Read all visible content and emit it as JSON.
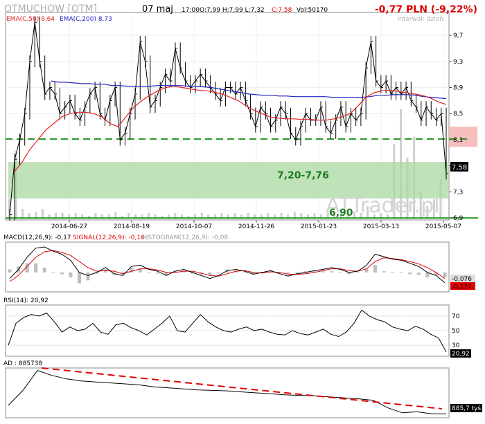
{
  "header": {
    "ticker": "OTMUCHOW [OTM]",
    "date": "07 maj",
    "time": "17:00",
    "ohlc": "O:7,99  H:7,99  L:7,32",
    "close_label": "C:7,58",
    "volume": "Vol:50170",
    "change": "-0,77 PLN (-9,22%)",
    "interval": "Interwał: dzień"
  },
  "watermark": "ATTrader.pl",
  "colors": {
    "ema50": "#e0201f",
    "ema200": "#2020c0",
    "price": "#000000",
    "support_zone": "#a9d8a0",
    "dashed_line": "#2a9a2a",
    "change": "#e00000",
    "macd_line": "#000000",
    "signal_line": "#e00000",
    "histogram": "#bdbdbd"
  },
  "chart_data": [
    {
      "type": "line",
      "panel": "price",
      "title": "OTMUCHOW [OTM]",
      "legend": [
        "EMA(C,50) 8,64",
        "EMA(C,200) 8,73"
      ],
      "x_ticks": [
        "2014-06-27",
        "2014-08-19",
        "2014-10-07",
        "2014-11-26",
        "2015-01-23",
        "2015-03-13",
        "2015-05-07"
      ],
      "y_ticks": [
        "6,9",
        "7,3",
        "7,7",
        "8,1",
        "8,5",
        "8,9",
        "9,3",
        "9,7"
      ],
      "ylim": [
        6.87,
        10.05
      ],
      "last_price_label": "7,58",
      "annotations": {
        "zone_label": "7,20-7,76",
        "support_label": "6,90"
      },
      "levels": {
        "zone_low": 7.2,
        "zone_high": 7.76,
        "dashed_resistance": 8.11,
        "support": 6.9,
        "highlight_low": 7.99,
        "highlight_high": 8.3
      },
      "series": [
        {
          "name": "Close",
          "values": [
            6.95,
            7.8,
            8.1,
            8.5,
            9.3,
            9.9,
            9.3,
            8.8,
            8.9,
            8.8,
            8.5,
            8.6,
            8.7,
            8.5,
            8.4,
            8.6,
            8.8,
            8.9,
            8.5,
            8.4,
            8.7,
            8.9,
            8.1,
            8.2,
            8.5,
            8.8,
            9.6,
            9.3,
            8.6,
            8.7,
            8.9,
            9.1,
            9.0,
            9.5,
            9.2,
            9.0,
            8.9,
            9.0,
            9.1,
            9.0,
            8.9,
            8.8,
            8.7,
            8.9,
            8.9,
            8.8,
            8.9,
            8.7,
            8.5,
            8.3,
            8.6,
            8.5,
            8.3,
            8.4,
            8.6,
            8.5,
            8.2,
            8.1,
            8.3,
            8.5,
            8.4,
            8.4,
            8.6,
            8.3,
            8.2,
            8.4,
            8.6,
            8.3,
            8.5,
            8.4,
            8.5,
            9.2,
            9.6,
            9.0,
            8.9,
            9.0,
            8.8,
            8.9,
            8.8,
            8.9,
            8.7,
            8.6,
            8.4,
            8.6,
            8.5,
            8.4,
            8.5,
            7.58
          ]
        },
        {
          "name": "EMA(C,50)",
          "values": [
            7.6,
            7.75,
            7.95,
            8.1,
            8.25,
            8.35,
            8.45,
            8.5,
            8.52,
            8.52,
            8.5,
            8.45,
            8.35,
            8.3,
            8.45,
            8.6,
            8.7,
            8.78,
            8.85,
            8.9,
            8.92,
            8.9,
            8.88,
            8.86,
            8.85,
            8.83,
            8.8,
            8.75,
            8.7,
            8.62,
            8.55,
            8.5,
            8.45,
            8.43,
            8.42,
            8.42,
            8.41,
            8.41,
            8.4,
            8.4,
            8.42,
            8.45,
            8.5,
            8.62,
            8.75,
            8.82,
            8.85,
            8.86,
            8.84,
            8.82,
            8.8,
            8.78,
            8.74,
            8.68,
            8.64
          ]
        },
        {
          "name": "EMA(C,200)",
          "values": [
            9.0,
            8.98,
            8.98,
            8.97,
            8.96,
            8.96,
            8.95,
            8.95,
            8.93,
            8.93,
            8.92,
            8.92,
            8.92,
            8.92,
            8.93,
            8.93,
            8.93,
            8.93,
            8.92,
            8.92,
            8.91,
            8.9,
            8.88,
            8.86,
            8.84,
            8.82,
            8.8,
            8.79,
            8.78,
            8.78,
            8.77,
            8.77,
            8.76,
            8.76,
            8.76,
            8.76,
            8.76,
            8.75,
            8.75,
            8.75,
            8.75,
            8.75,
            8.76,
            8.78,
            8.78,
            8.79,
            8.79,
            8.79,
            8.78,
            8.76,
            8.75,
            8.74,
            8.73
          ]
        }
      ]
    },
    {
      "type": "line",
      "panel": "macd",
      "legend": [
        "MACD(12,26,9): -0,17",
        "SIGNAL(12,26,9): -0,10",
        "HISTOGRAM(12,26,9): -0,08"
      ],
      "value_labels": [
        "-0,076",
        "-0,172"
      ],
      "series": [
        {
          "name": "MACD(12,26,9)",
          "values": [
            -0.1,
            0.05,
            0.25,
            0.4,
            0.42,
            0.35,
            0.3,
            0.2,
            0.0,
            -0.05,
            0.0,
            0.08,
            -0.02,
            -0.05,
            0.1,
            0.12,
            0.05,
            0.02,
            -0.05,
            0.02,
            0.05,
            0.0,
            -0.05,
            -0.1,
            -0.05,
            0.03,
            0.05,
            0.02,
            -0.03,
            0.0,
            0.03,
            -0.02,
            -0.06,
            -0.02,
            0.0,
            0.03,
            0.05,
            0.08,
            0.05,
            0.0,
            0.02,
            0.12,
            0.3,
            0.26,
            0.22,
            0.2,
            0.15,
            0.1,
            0.0,
            -0.05,
            -0.17
          ]
        },
        {
          "name": "SIGNAL(12,26,9)",
          "values": [
            -0.15,
            -0.05,
            0.1,
            0.25,
            0.34,
            0.36,
            0.33,
            0.28,
            0.18,
            0.08,
            0.02,
            0.03,
            0.02,
            -0.02,
            0.02,
            0.06,
            0.06,
            0.04,
            0.0,
            0.0,
            0.02,
            0.02,
            -0.01,
            -0.05,
            -0.06,
            -0.02,
            0.02,
            0.03,
            0.0,
            -0.01,
            0.01,
            0.0,
            -0.03,
            -0.03,
            -0.02,
            0.0,
            0.03,
            0.06,
            0.06,
            0.03,
            0.02,
            0.06,
            0.18,
            0.24,
            0.23,
            0.21,
            0.18,
            0.14,
            0.08,
            0.0,
            -0.1
          ]
        },
        {
          "name": "HISTOGRAM(12,26,9)",
          "values": [
            0.05,
            0.1,
            0.15,
            0.15,
            0.08,
            -0.01,
            -0.03,
            -0.08,
            -0.18,
            -0.13,
            -0.02,
            0.05,
            -0.04,
            -0.03,
            0.08,
            0.06,
            -0.01,
            -0.02,
            -0.05,
            0.02,
            0.03,
            -0.02,
            -0.04,
            -0.05,
            0.01,
            0.05,
            0.03,
            -0.01,
            -0.03,
            0.01,
            0.02,
            -0.02,
            -0.03,
            0.01,
            0.02,
            0.03,
            0.02,
            0.02,
            -0.01,
            -0.03,
            0.0,
            0.06,
            0.12,
            0.02,
            -0.01,
            -0.01,
            -0.03,
            -0.04,
            -0.08,
            -0.05,
            -0.08
          ]
        }
      ]
    },
    {
      "type": "line",
      "panel": "rsi",
      "legend": [
        "RSI(14): 20,92"
      ],
      "y_ticks": [
        "70",
        "50",
        "30"
      ],
      "ylim": [
        15,
        85
      ],
      "last_value_label": "20,92",
      "series": [
        {
          "name": "RSI(14)",
          "values": [
            30,
            60,
            68,
            72,
            70,
            74,
            62,
            48,
            55,
            50,
            52,
            60,
            48,
            45,
            58,
            60,
            54,
            50,
            44,
            52,
            60,
            70,
            50,
            48,
            60,
            72,
            62,
            55,
            50,
            48,
            52,
            55,
            50,
            52,
            48,
            45,
            44,
            50,
            46,
            44,
            48,
            52,
            45,
            42,
            48,
            60,
            78,
            70,
            65,
            62,
            55,
            52,
            50,
            56,
            52,
            45,
            40,
            20.92
          ]
        }
      ]
    },
    {
      "type": "line",
      "panel": "ad",
      "legend": [
        "AD : 885738"
      ],
      "last_value_label": "885,7 tyś",
      "series": [
        {
          "name": "AD",
          "values": [
            0.25,
            0.55,
            0.95,
            0.85,
            0.78,
            0.74,
            0.72,
            0.7,
            0.68,
            0.66,
            0.62,
            0.6,
            0.58,
            0.56,
            0.55,
            0.54,
            0.52,
            0.5,
            0.48,
            0.46,
            0.45,
            0.44,
            0.42,
            0.4,
            0.38,
            0.35,
            0.2,
            0.1,
            0.12,
            0.08,
            0.08
          ]
        },
        {
          "name": "trend",
          "values": [
            1.0,
            0.18
          ]
        }
      ]
    }
  ]
}
